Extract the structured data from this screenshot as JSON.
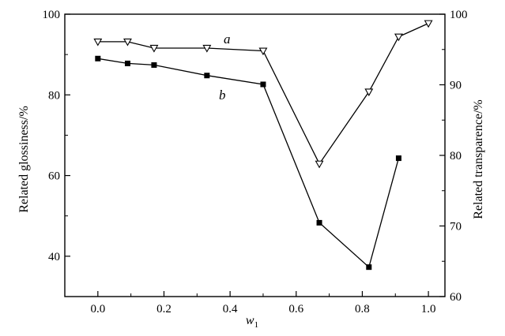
{
  "chart_data": {
    "type": "line",
    "xlabel": "w",
    "xlabel_subscript": "1",
    "ylabel_left": "Related glossiness/%",
    "ylabel_right": "Related transparence/%",
    "xlim": [
      -0.1,
      1.05
    ],
    "ylim_left": [
      30,
      100
    ],
    "ylim_right": [
      60,
      100
    ],
    "x_ticks": [
      "0.0",
      "0.2",
      "0.4",
      "0.6",
      "0.8",
      "1.0"
    ],
    "y_left_ticks": [
      "40",
      "60",
      "80",
      "100"
    ],
    "y_right_ticks": [
      "60",
      "70",
      "80",
      "90",
      "100"
    ],
    "series": [
      {
        "name": "a",
        "axis": "right",
        "marker": "triangle-down-open",
        "x": [
          0.0,
          0.09,
          0.17,
          0.33,
          0.5,
          0.67,
          0.82,
          0.91,
          1.0
        ],
        "y": [
          96.1,
          96.1,
          95.2,
          95.2,
          94.8,
          78.8,
          89.0,
          96.8,
          98.7
        ]
      },
      {
        "name": "b",
        "axis": "left",
        "marker": "square-filled",
        "x": [
          0.0,
          0.09,
          0.17,
          0.33,
          0.5,
          0.67,
          0.82,
          0.91
        ],
        "y": [
          89.0,
          87.8,
          87.4,
          84.8,
          82.6,
          48.3,
          37.3,
          64.3
        ]
      }
    ]
  }
}
